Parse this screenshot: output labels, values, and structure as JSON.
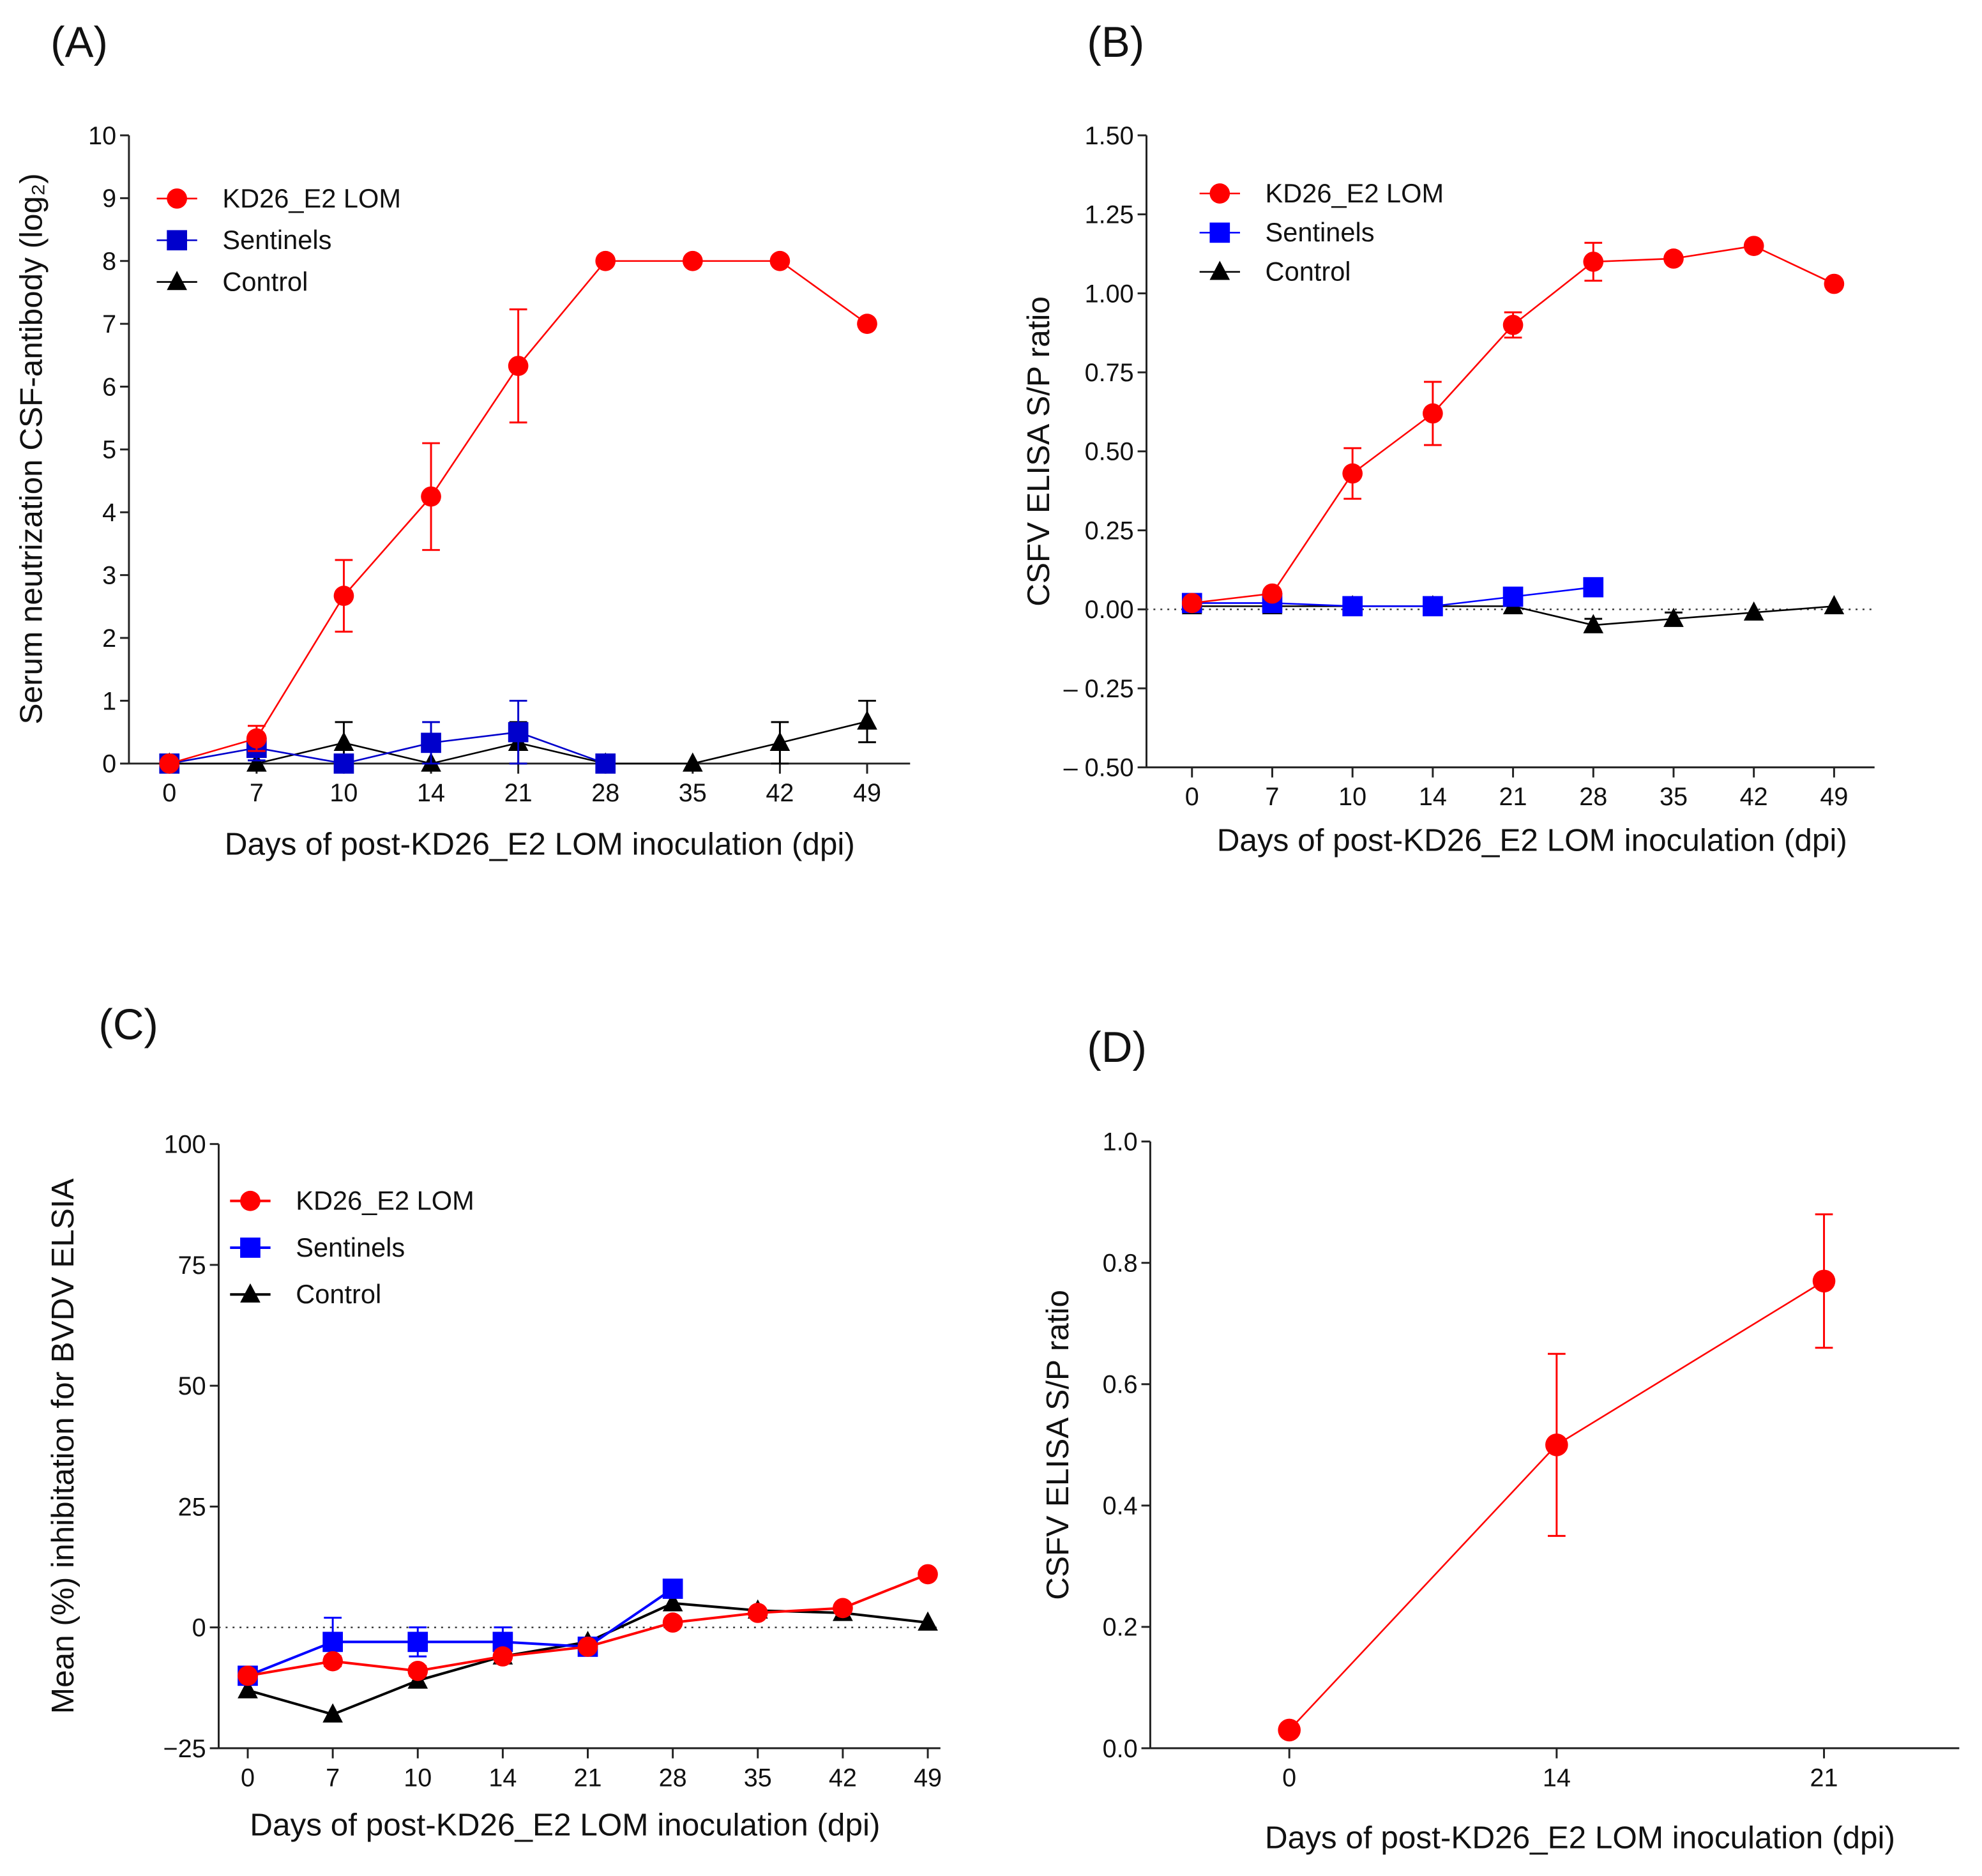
{
  "chart_data": [
    {
      "panel_label": "(A)",
      "type": "line",
      "xlabel": "Days of post-KD26_E2 LOM inoculation (dpi)",
      "ylabel": "Serum neutrization CSF-antibody (log₂)",
      "categories": [
        "0",
        "7",
        "10",
        "14",
        "21",
        "28",
        "35",
        "42",
        "49"
      ],
      "ylim": [
        0,
        10
      ],
      "yticks": [
        0,
        1,
        2,
        3,
        4,
        5,
        6,
        7,
        8,
        9,
        10
      ],
      "ytick_labels": [
        "0",
        "1",
        "2",
        "3",
        "4",
        "5",
        "6",
        "7",
        "8",
        "9",
        "10"
      ],
      "zero_line": false,
      "legend": "top-left",
      "series": [
        {
          "name": "KD26_E2 LOM",
          "color": "#ff0000",
          "marker": "circle",
          "values": [
            0,
            0.4,
            2.67,
            4.25,
            6.33,
            8,
            8,
            8,
            7
          ],
          "errors": [
            0,
            0.2,
            0.57,
            0.85,
            0.9,
            0,
            0,
            0,
            0
          ]
        },
        {
          "name": "Sentinels",
          "color": "#0000cc",
          "marker": "square",
          "values": [
            0,
            0.25,
            0,
            0.33,
            0.5,
            0,
            null,
            null,
            null
          ],
          "errors": [
            0,
            0.2,
            0,
            0.33,
            0.5,
            0,
            null,
            null,
            null
          ]
        },
        {
          "name": "Control",
          "color": "#000000",
          "marker": "triangle",
          "values": [
            0,
            0,
            0.33,
            0,
            0.33,
            0,
            0,
            0.33,
            0.67
          ],
          "errors": [
            0,
            0,
            0.33,
            0,
            0.33,
            0,
            0,
            0.33,
            0.33
          ]
        }
      ]
    },
    {
      "panel_label": "(B)",
      "type": "line",
      "xlabel": "Days of post-KD26_E2 LOM inoculation (dpi)",
      "ylabel": "CSFV ELISA S/P ratio",
      "categories": [
        "0",
        "7",
        "10",
        "14",
        "21",
        "28",
        "35",
        "42",
        "49"
      ],
      "ylim": [
        -0.5,
        1.5
      ],
      "yticks": [
        -0.5,
        -0.25,
        0,
        0.25,
        0.5,
        0.75,
        1,
        1.25,
        1.5
      ],
      "ytick_labels": [
        "– 0.50",
        "– 0.25",
        "0.00",
        "0.25",
        "0.50",
        "0.75",
        "1.00",
        "1.25",
        "1.50"
      ],
      "zero_line": true,
      "legend": "top-left",
      "series": [
        {
          "name": "KD26_E2 LOM",
          "color": "#ff0000",
          "marker": "circle",
          "values": [
            0.02,
            0.05,
            0.43,
            0.62,
            0.9,
            1.1,
            1.11,
            1.15,
            1.03
          ],
          "errors": [
            0,
            0,
            0.08,
            0.1,
            0.04,
            0.06,
            0,
            0,
            0
          ]
        },
        {
          "name": "Sentinels",
          "color": "#0000ff",
          "marker": "square",
          "values": [
            0.02,
            0.02,
            0.01,
            0.01,
            0.04,
            0.07,
            null,
            null,
            null
          ],
          "errors": [
            0,
            0,
            0,
            0,
            0,
            0,
            null,
            null,
            null
          ]
        },
        {
          "name": "Control",
          "color": "#000000",
          "marker": "triangle",
          "values": [
            0.01,
            0.01,
            0.01,
            0.01,
            0.01,
            -0.05,
            -0.03,
            -0.01,
            0.01
          ],
          "errors": [
            0.02,
            0.02,
            0.02,
            0.02,
            0.02,
            0.02,
            0.02,
            0,
            0
          ]
        }
      ]
    },
    {
      "panel_label": "(C)",
      "type": "line",
      "xlabel": "Days of post-KD26_E2 LOM inoculation (dpi)",
      "ylabel": "Mean (%) inhibitation for BVDV ELSIA",
      "categories": [
        "0",
        "7",
        "10",
        "14",
        "21",
        "28",
        "35",
        "42",
        "49"
      ],
      "ylim": [
        -25,
        100
      ],
      "yticks": [
        -25,
        0,
        25,
        50,
        75,
        100
      ],
      "ytick_labels": [
        "−25",
        "0",
        "25",
        "50",
        "75",
        "100"
      ],
      "zero_line": true,
      "legend": "top-left",
      "series": [
        {
          "name": "KD26_E2 LOM",
          "color": "#ff0000",
          "marker": "circle",
          "values": [
            -10,
            -7,
            -9,
            -6,
            -4,
            1,
            3,
            4,
            11
          ],
          "errors": [
            0,
            1,
            1,
            0,
            0,
            0,
            0,
            0,
            0
          ]
        },
        {
          "name": "Sentinels",
          "color": "#0000ff",
          "marker": "square",
          "values": [
            -10,
            -3,
            -3,
            -3,
            -4,
            8,
            null,
            null,
            null
          ],
          "errors": [
            0,
            5,
            3,
            3,
            0,
            0,
            null,
            null,
            null
          ]
        },
        {
          "name": "Control",
          "color": "#000000",
          "marker": "triangle",
          "values": [
            -13,
            -18,
            -11,
            -6,
            -3,
            5,
            3.5,
            3,
            1
          ],
          "errors": [
            0,
            0,
            0,
            0,
            0,
            0,
            0,
            0,
            0
          ]
        }
      ]
    },
    {
      "panel_label": "(D)",
      "type": "line",
      "xlabel": "Days of post-KD26_E2 LOM inoculation (dpi)",
      "ylabel": "CSFV ELISA S/P ratio",
      "categories": [
        "0",
        "14",
        "21"
      ],
      "ylim": [
        0,
        1.0
      ],
      "yticks": [
        0,
        0.2,
        0.4,
        0.6,
        0.8,
        1.0
      ],
      "ytick_labels": [
        "0.0",
        "0.2",
        "0.4",
        "0.6",
        "0.8",
        "1.0"
      ],
      "zero_line": false,
      "legend": "none",
      "series": [
        {
          "color": "#ff0000",
          "marker": "circle",
          "values": [
            0.03,
            0.5,
            0.77
          ],
          "errors": [
            0,
            0.15,
            0.11
          ]
        }
      ]
    }
  ]
}
